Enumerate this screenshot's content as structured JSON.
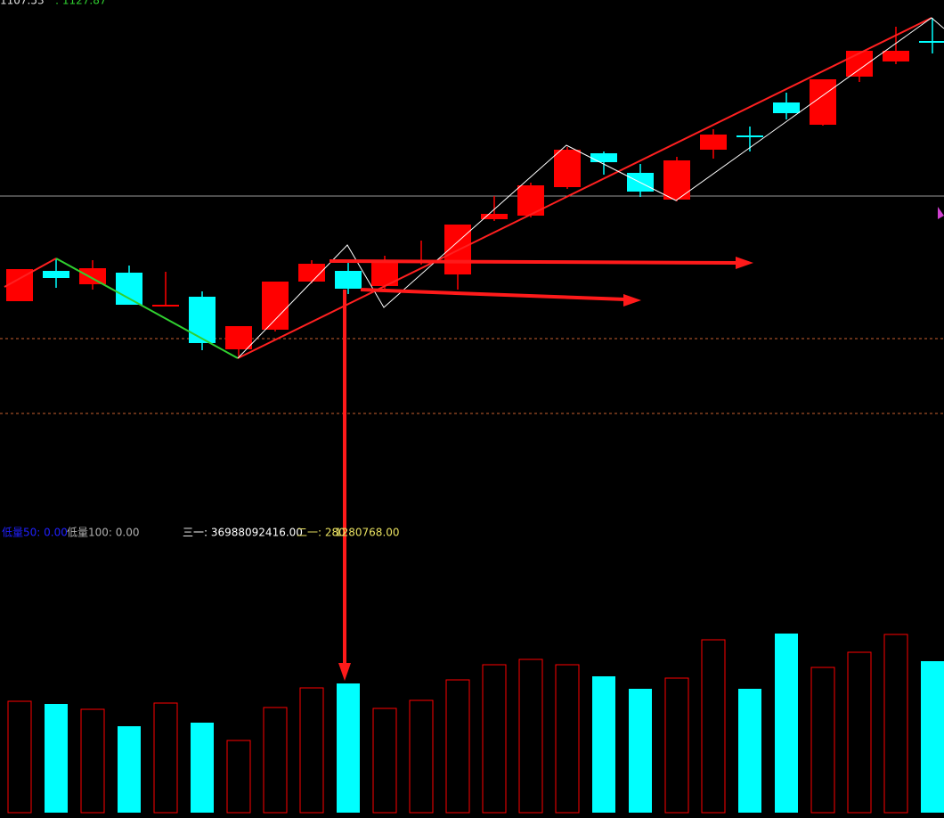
{
  "chart_data": [
    {
      "type": "candlestick",
      "header": [
        "1107.53",
        ": 1127.87"
      ],
      "up_color": "#ff0000",
      "down_color": "#00ffff",
      "ylim": [
        0,
        600
      ],
      "open": [
        262,
        296,
        281,
        294,
        258,
        267,
        208,
        230,
        284,
        296,
        279,
        306,
        292,
        354,
        358,
        390,
        428,
        406,
        376,
        432,
        448,
        485,
        460,
        514,
        531,
        554
      ],
      "high": [
        298,
        310,
        308,
        302,
        295,
        273,
        234,
        284,
        308,
        308,
        313,
        330,
        348,
        380,
        395,
        435,
        430,
        416,
        424,
        455,
        458,
        496,
        511,
        543,
        570,
        580
      ],
      "low": [
        262,
        277,
        275,
        258,
        258,
        207,
        200,
        228,
        282,
        270,
        275,
        303,
        275,
        352,
        356,
        388,
        404,
        379,
        374,
        422,
        430,
        466,
        459,
        508,
        528,
        540
      ],
      "close": [
        298,
        288,
        299,
        258,
        258,
        215,
        234,
        284,
        304,
        276,
        307,
        308,
        348,
        360,
        392,
        432,
        418,
        385,
        420,
        449,
        446,
        473,
        511,
        543,
        543,
        553
      ]
    },
    {
      "type": "volume",
      "legend": [
        {
          "label": "低量50: 0.00",
          "color": "#2020ff"
        },
        {
          "label": "低量100: 0.00",
          "color": "#b0b0b0"
        },
        {
          "label": "三一: 36988092416.00",
          "color": "#ffffff"
        },
        {
          "label": "二一: 280",
          "color": "#e8e060"
        },
        {
          "label": "1280768.00",
          "color": "#e8e060"
        }
      ],
      "ylim": [
        0,
        212
      ],
      "values": [
        125,
        122,
        116,
        97,
        123,
        101,
        81,
        118,
        140,
        145,
        117,
        126,
        149,
        166,
        172,
        166,
        153,
        139,
        151,
        194,
        139,
        201,
        163,
        180,
        200,
        170
      ]
    }
  ]
}
